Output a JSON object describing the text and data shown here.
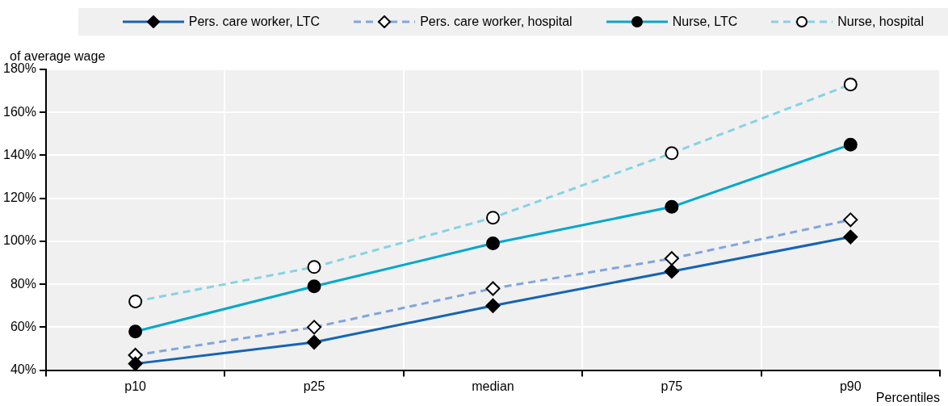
{
  "chart_data": {
    "type": "line",
    "ylabel": "of average wage",
    "xlabel": "Percentiles",
    "categories": [
      "p10",
      "p25",
      "median",
      "p75",
      "p90"
    ],
    "series": [
      {
        "name": "Pers. care worker, LTC",
        "color": "#1565b4",
        "marker": "diamond",
        "line_style": "solid",
        "values": [
          43,
          53,
          70,
          86,
          102
        ]
      },
      {
        "name": "Pers. care worker, hospital",
        "color": "#80a6dc",
        "marker": "diamond",
        "line_style": "dashed",
        "values": [
          47,
          60,
          78,
          92,
          110
        ]
      },
      {
        "name": "Nurse, LTC",
        "color": "#00a8cc",
        "marker": "circle",
        "line_style": "solid",
        "values": [
          58,
          79,
          99,
          116,
          145
        ]
      },
      {
        "name": "Nurse, hospital",
        "color": "#86d3e4",
        "marker": "circle",
        "line_style": "dashed",
        "values": [
          72,
          88,
          111,
          141,
          173
        ]
      }
    ],
    "ylim": [
      40,
      180
    ],
    "yticks": [
      {
        "value": 40,
        "label": "40%"
      },
      {
        "value": 60,
        "label": "60%"
      },
      {
        "value": 80,
        "label": "80%"
      },
      {
        "value": 100,
        "label": "100%"
      },
      {
        "value": 120,
        "label": "120%"
      },
      {
        "value": 140,
        "label": "140%"
      },
      {
        "value": 160,
        "label": "160%"
      },
      {
        "value": 180,
        "label": "180%"
      }
    ],
    "grid": true,
    "legend": "top"
  }
}
